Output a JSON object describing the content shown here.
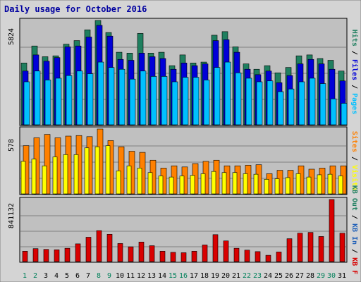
{
  "title": "Daily usage for October 2016",
  "colors": {
    "hits": "#1f7f5f",
    "files": "#0000d8",
    "pages": "#00c0ff",
    "visits": "#ffff00",
    "sites": "#ff8000",
    "kbin": "#1e5fb8",
    "kbout": "#1f7f5f",
    "kbf": "#d80000",
    "panel": "#c0c0c0",
    "frame": "#d4d4d4",
    "title": "#0000a0"
  },
  "chart_data": [
    {
      "type": "bar",
      "name": "hits-files-pages",
      "max_label": "5824",
      "ymax": 5824,
      "right_labels": [
        "Pages",
        "Files",
        "Hits"
      ],
      "categories": [
        "1",
        "2",
        "3",
        "4",
        "5",
        "6",
        "7",
        "8",
        "9",
        "10",
        "11",
        "12",
        "13",
        "14",
        "15",
        "16",
        "17",
        "18",
        "19",
        "20",
        "21",
        "22",
        "23",
        "24",
        "25",
        "26",
        "27",
        "28",
        "29",
        "30",
        "31"
      ],
      "weekend_days": [
        "1",
        "2",
        "8",
        "9",
        "15",
        "16",
        "22",
        "23",
        "29",
        "30"
      ],
      "series": [
        {
          "name": "Hits",
          "values": [
            3450,
            4400,
            3800,
            3850,
            4500,
            4700,
            5300,
            5824,
            5150,
            4050,
            4000,
            5100,
            4000,
            4050,
            3300,
            3900,
            3450,
            3500,
            5000,
            5200,
            4350,
            3400,
            3100,
            3300,
            2900,
            3200,
            3850,
            3900,
            3700,
            3600,
            3000
          ]
        },
        {
          "name": "Files",
          "values": [
            3000,
            3900,
            3550,
            3750,
            4350,
            4400,
            4900,
            5550,
            4950,
            3650,
            3600,
            4000,
            3800,
            3700,
            3100,
            3450,
            3300,
            3400,
            4700,
            4750,
            4050,
            3100,
            2800,
            3000,
            2350,
            2750,
            3400,
            3650,
            3400,
            3100,
            2450
          ]
        },
        {
          "name": "Pages",
          "values": [
            2400,
            3000,
            2500,
            2600,
            2750,
            3000,
            2850,
            3500,
            3200,
            3100,
            2550,
            3000,
            2700,
            2700,
            2400,
            2650,
            2650,
            2500,
            3200,
            3500,
            2900,
            2600,
            2400,
            2450,
            1850,
            2000,
            2400,
            2600,
            2300,
            1450,
            1200
          ]
        }
      ]
    },
    {
      "type": "bar",
      "name": "visits-sites",
      "max_label": "578",
      "ymax": 578,
      "right_labels": [
        "Visits",
        "Sites"
      ],
      "categories": [
        "1",
        "2",
        "3",
        "4",
        "5",
        "6",
        "7",
        "8",
        "9",
        "10",
        "11",
        "12",
        "13",
        "14",
        "15",
        "16",
        "17",
        "18",
        "19",
        "20",
        "21",
        "22",
        "23",
        "24",
        "25",
        "26",
        "27",
        "28",
        "29",
        "30",
        "31"
      ],
      "series": [
        {
          "name": "Sites",
          "values": [
            430,
            500,
            530,
            500,
            515,
            520,
            510,
            578,
            475,
            420,
            380,
            370,
            300,
            230,
            250,
            240,
            270,
            290,
            300,
            250,
            250,
            255,
            260,
            180,
            210,
            210,
            250,
            220,
            230,
            250,
            250
          ]
        },
        {
          "name": "Visits",
          "values": [
            290,
            310,
            250,
            330,
            350,
            350,
            410,
            420,
            430,
            205,
            250,
            230,
            190,
            160,
            150,
            160,
            165,
            180,
            200,
            190,
            190,
            180,
            175,
            130,
            135,
            145,
            180,
            150,
            170,
            175,
            160
          ]
        }
      ]
    },
    {
      "type": "bar",
      "name": "kbytes",
      "max_label": "841132",
      "ymax": 841132,
      "right_labels": [
        "KB F",
        "KB In",
        "KB Out"
      ],
      "categories": [
        "1",
        "2",
        "3",
        "4",
        "5",
        "6",
        "7",
        "8",
        "9",
        "10",
        "11",
        "12",
        "13",
        "14",
        "15",
        "16",
        "17",
        "18",
        "19",
        "20",
        "21",
        "22",
        "23",
        "24",
        "25",
        "26",
        "27",
        "28",
        "29",
        "30",
        "31"
      ],
      "series": [
        {
          "name": "KB F",
          "values": [
            140000,
            175000,
            165000,
            160000,
            180000,
            240000,
            330000,
            420000,
            370000,
            245000,
            200000,
            265000,
            215000,
            140000,
            125000,
            120000,
            140000,
            225000,
            365000,
            280000,
            180000,
            155000,
            135000,
            85000,
            130000,
            310000,
            385000,
            395000,
            340000,
            841132,
            385000
          ]
        }
      ]
    }
  ]
}
